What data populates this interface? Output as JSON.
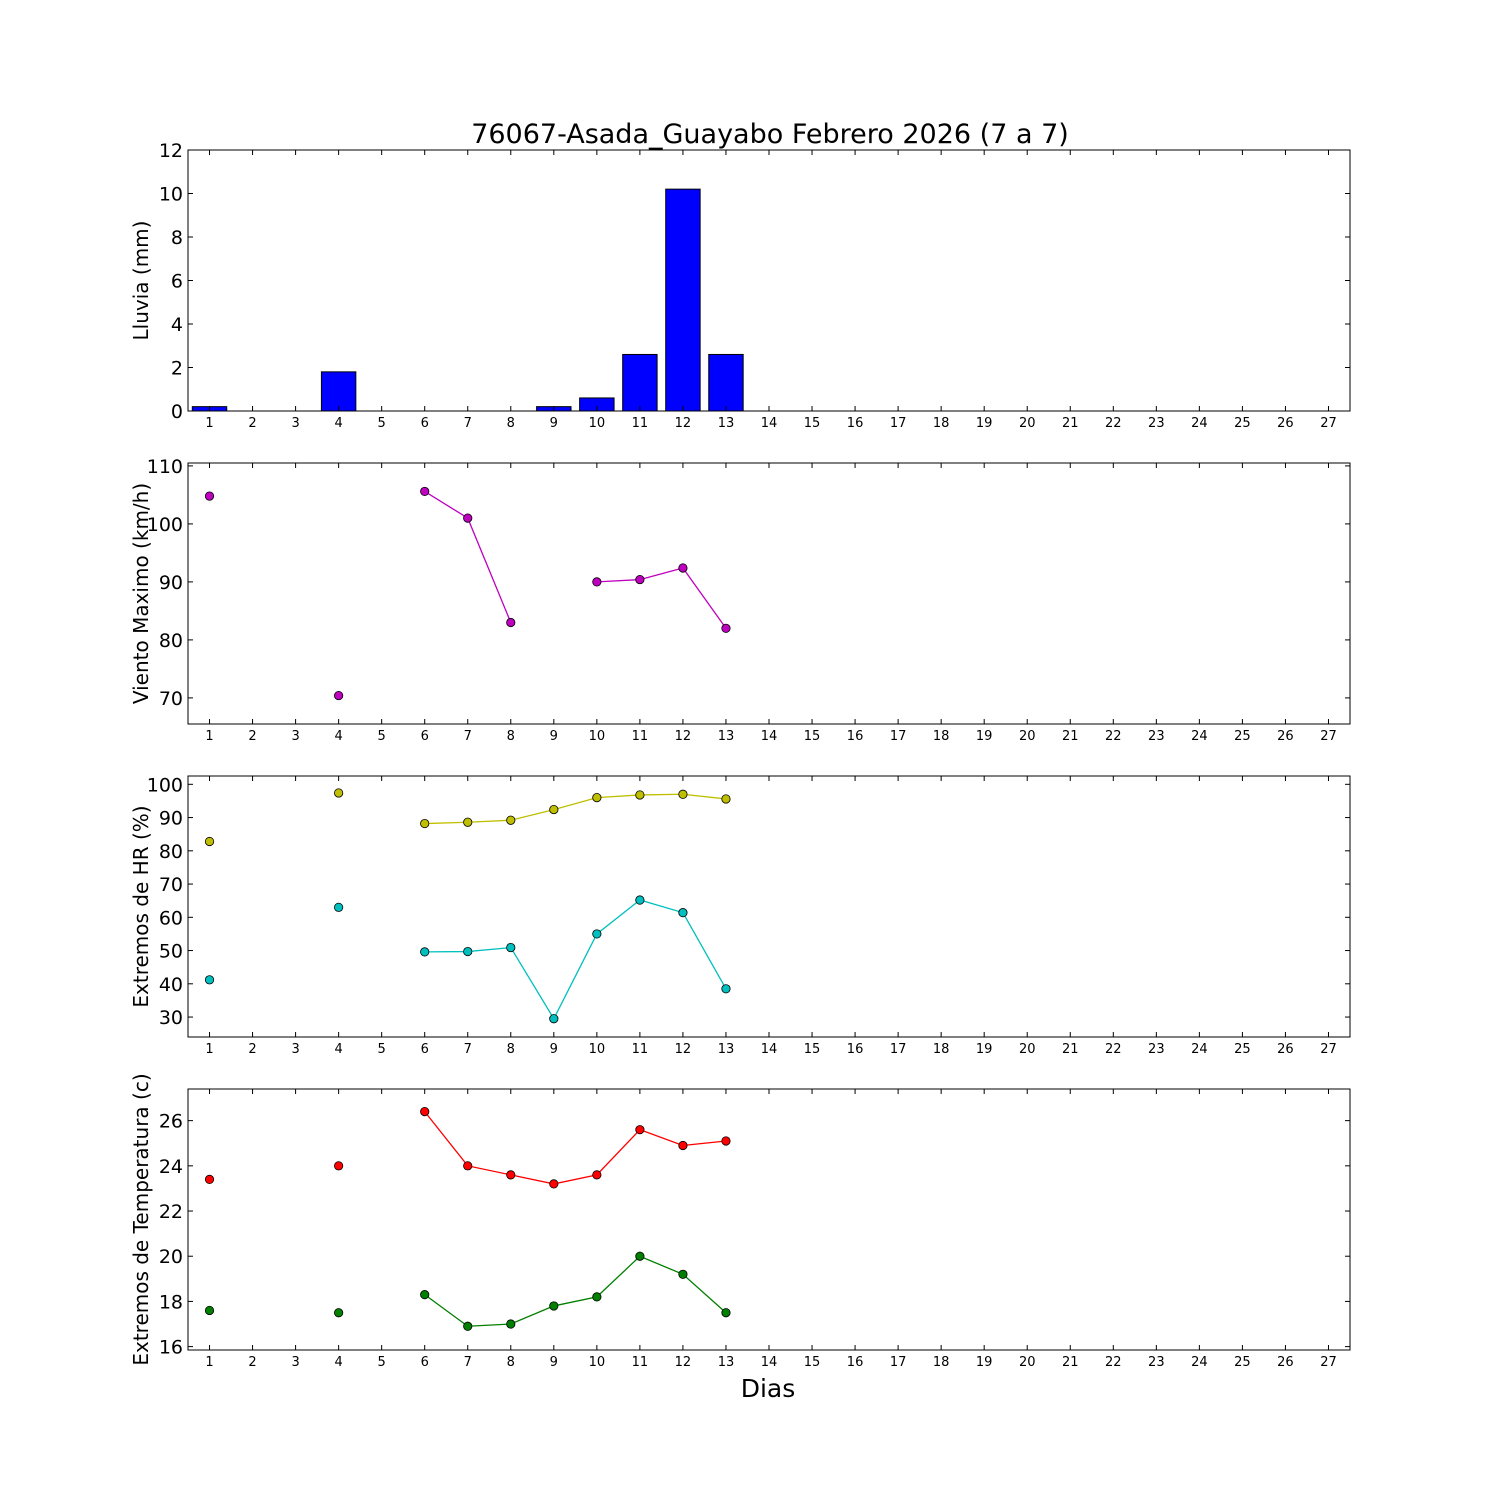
{
  "title": "76067-Asada_Guayabo Febrero 2026  (7 a 7)",
  "xlabel": "Dias",
  "x_ticks": [
    "1",
    "2",
    "3",
    "4",
    "5",
    "6",
    "7",
    "8",
    "9",
    "10",
    "11",
    "12",
    "13",
    "14",
    "15",
    "16",
    "17",
    "18",
    "19",
    "20",
    "21",
    "22",
    "23",
    "24",
    "25",
    "26",
    "27"
  ],
  "chart_data": [
    {
      "type": "bar",
      "ylabel": "Lluvia (mm)",
      "ylim": [
        0,
        12
      ],
      "yticks": [
        0,
        2,
        4,
        6,
        8,
        10,
        12
      ],
      "xlim": [
        0.5,
        27.5
      ],
      "series": [
        {
          "color": "#0000ff",
          "points": [
            [
              1,
              0.2
            ],
            [
              2,
              0
            ],
            [
              3,
              0
            ],
            [
              4,
              1.8
            ],
            [
              5,
              0
            ],
            [
              6,
              0
            ],
            [
              7,
              0
            ],
            [
              8,
              0
            ],
            [
              9,
              0.2
            ],
            [
              10,
              0.6
            ],
            [
              11,
              2.6
            ],
            [
              12,
              10.2
            ],
            [
              13,
              2.6
            ]
          ]
        }
      ]
    },
    {
      "type": "line",
      "ylabel": "Viento Maximo (km/h)",
      "ylim": [
        65.5,
        110.5
      ],
      "yticks": [
        70,
        80,
        90,
        100,
        110
      ],
      "xlim": [
        0.5,
        27.5
      ],
      "series": [
        {
          "color": "#bf00bf",
          "points": [
            [
              1,
              104.8
            ],
            [
              2,
              null
            ],
            [
              3,
              null
            ],
            [
              4,
              70.4
            ],
            [
              5,
              null
            ],
            [
              6,
              105.6
            ],
            [
              7,
              101.0
            ],
            [
              8,
              83.0
            ],
            [
              9,
              null
            ],
            [
              10,
              90.0
            ],
            [
              11,
              90.4
            ],
            [
              12,
              92.4
            ],
            [
              13,
              82.0
            ]
          ]
        }
      ]
    },
    {
      "type": "line",
      "ylabel": "Extremos de HR (%)",
      "ylim": [
        24,
        102.5
      ],
      "yticks": [
        30,
        40,
        50,
        60,
        70,
        80,
        90,
        100
      ],
      "xlim": [
        0.5,
        27.5
      ],
      "series": [
        {
          "color": "#bfbf00",
          "points": [
            [
              1,
              82.8
            ],
            [
              2,
              null
            ],
            [
              3,
              null
            ],
            [
              4,
              97.4
            ],
            [
              5,
              null
            ],
            [
              6,
              88.2
            ],
            [
              7,
              88.6
            ],
            [
              8,
              89.2
            ],
            [
              9,
              92.4
            ],
            [
              10,
              96.0
            ],
            [
              11,
              96.8
            ],
            [
              12,
              97.0
            ],
            [
              13,
              95.6
            ]
          ]
        },
        {
          "color": "#00bfbf",
          "points": [
            [
              1,
              41.2
            ],
            [
              2,
              null
            ],
            [
              3,
              null
            ],
            [
              4,
              63.0
            ],
            [
              5,
              null
            ],
            [
              6,
              49.6
            ],
            [
              7,
              49.7
            ],
            [
              8,
              50.9
            ],
            [
              9,
              29.5
            ],
            [
              10,
              55.0
            ],
            [
              11,
              65.2
            ],
            [
              12,
              61.4
            ],
            [
              13,
              38.5
            ]
          ]
        }
      ]
    },
    {
      "type": "line",
      "ylabel": "Extremos de Temperatura (c)",
      "ylim": [
        15.85,
        27.4
      ],
      "yticks": [
        16,
        18,
        20,
        22,
        24,
        26
      ],
      "xlim": [
        0.5,
        27.5
      ],
      "series": [
        {
          "color": "#ff0000",
          "points": [
            [
              1,
              23.4
            ],
            [
              2,
              null
            ],
            [
              3,
              null
            ],
            [
              4,
              24.0
            ],
            [
              5,
              null
            ],
            [
              6,
              26.4
            ],
            [
              7,
              24.0
            ],
            [
              8,
              23.6
            ],
            [
              9,
              23.2
            ],
            [
              10,
              23.6
            ],
            [
              11,
              25.6
            ],
            [
              12,
              24.9
            ],
            [
              13,
              25.1
            ]
          ]
        },
        {
          "color": "#007f00",
          "points": [
            [
              1,
              17.6
            ],
            [
              2,
              null
            ],
            [
              3,
              null
            ],
            [
              4,
              17.5
            ],
            [
              5,
              null
            ],
            [
              6,
              18.3
            ],
            [
              7,
              16.9
            ],
            [
              8,
              17.0
            ],
            [
              9,
              17.8
            ],
            [
              10,
              18.2
            ],
            [
              11,
              20.0
            ],
            [
              12,
              19.2
            ],
            [
              13,
              17.5
            ]
          ]
        }
      ]
    }
  ]
}
